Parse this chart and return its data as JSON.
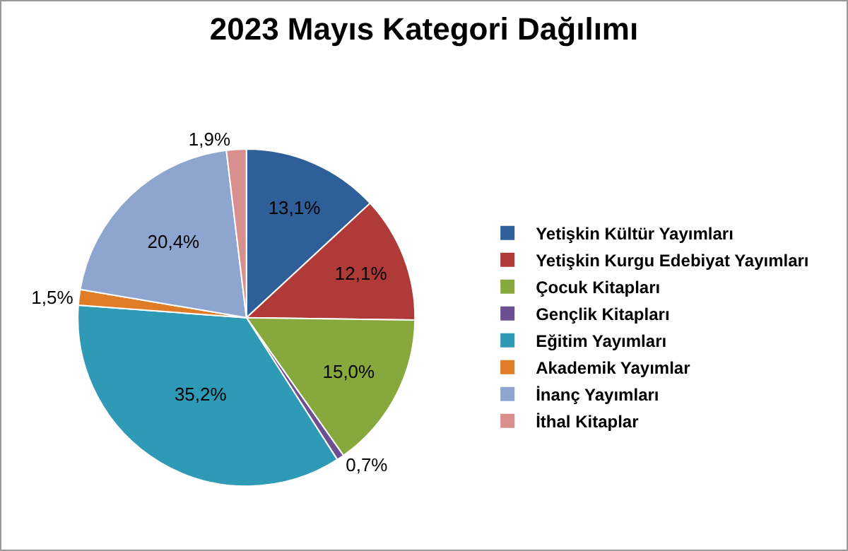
{
  "chart_data": {
    "type": "pie",
    "title": "2023 Mayıs Kategori Dağılımı",
    "categories": [
      "Yetişkin Kültür Yayımları",
      "Yetişkin Kurgu Edebiyat Yayımları",
      "Çocuk Kitapları",
      "Gençlik Kitapları",
      "Eğitim Yayımları",
      "Akademik Yayımlar",
      "İnanç Yayımları",
      "İthal Kitaplar"
    ],
    "values": [
      13.1,
      12.1,
      15.0,
      0.7,
      35.2,
      1.5,
      20.4,
      1.9
    ],
    "value_labels": [
      "13,1%",
      "12,1%",
      "15,0%",
      "0,7%",
      "35,2%",
      "1,5%",
      "20,4%",
      "1,9%"
    ],
    "colors": [
      "#2f5f98",
      "#b03a37",
      "#86a83c",
      "#6b4f91",
      "#2f9ab5",
      "#e07b26",
      "#8ea5cf",
      "#d98f8d"
    ],
    "legend": "right"
  }
}
